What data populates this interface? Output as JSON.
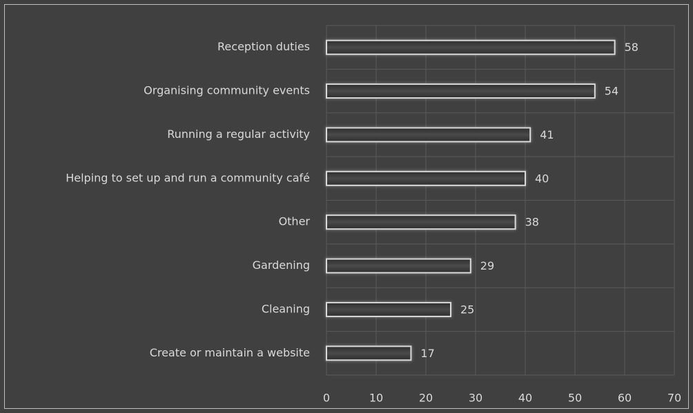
{
  "chart_data": {
    "type": "bar",
    "orientation": "horizontal",
    "categories": [
      "Reception duties",
      "Organising community events",
      "Running a regular activity",
      "Helping to set up and run a community café",
      "Other",
      "Gardening",
      "Cleaning",
      "Create or maintain a website"
    ],
    "values": [
      58,
      54,
      41,
      40,
      38,
      29,
      25,
      17
    ],
    "color": "#3a3a3a",
    "edge_color": "#d9d9d9",
    "xlim": [
      0,
      70
    ],
    "xticks": [
      0,
      10,
      20,
      30,
      40,
      50,
      60,
      70
    ],
    "grid": true
  }
}
